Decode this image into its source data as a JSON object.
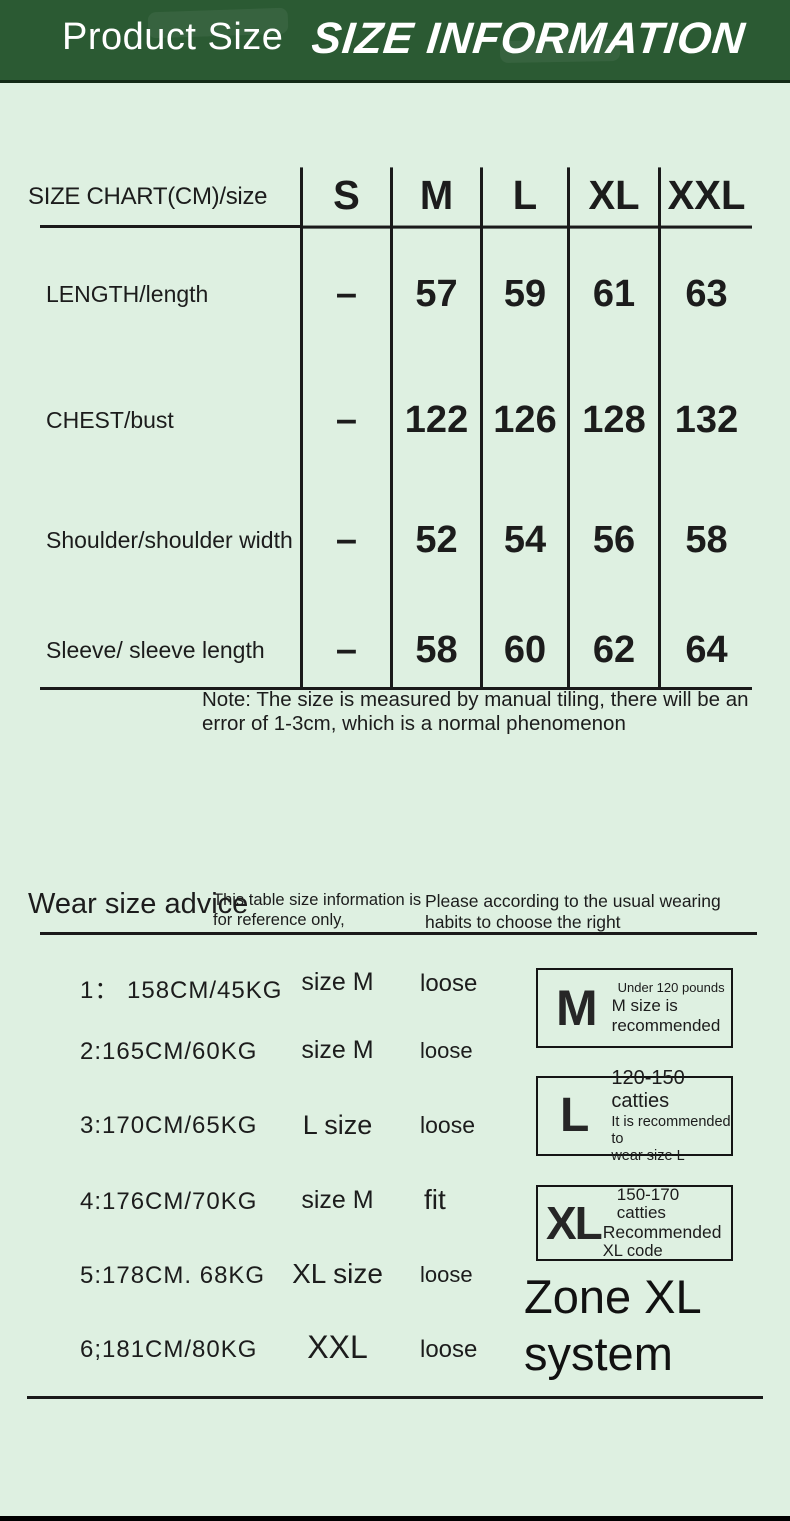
{
  "colors": {
    "header_bg": "#2b5a33",
    "page_bg": "#def0e1",
    "line": "#1a1a1a",
    "text": "#1c1c1c"
  },
  "header": {
    "title": "Product Size",
    "banner": "SIZE INFORMATION"
  },
  "size_chart": {
    "corner_label": "SIZE CHART(CM)/size",
    "columns": [
      "S",
      "M",
      "L",
      "XL",
      "XXL"
    ],
    "rows": [
      {
        "label": "LENGTH/length",
        "values": [
          "–",
          "57",
          "59",
          "61",
          "63"
        ]
      },
      {
        "label": "CHEST/bust",
        "values": [
          "–",
          "122",
          "126",
          "128",
          "132"
        ]
      },
      {
        "label": "Shoulder/shoulder width",
        "values": [
          "–",
          "52",
          "54",
          "56",
          "58"
        ]
      },
      {
        "label": "Sleeve/ sleeve length",
        "values": [
          "–",
          "58",
          "60",
          "62",
          "64"
        ]
      }
    ],
    "note": "Note: The size is measured by manual tiling, there will be an\nerror of 1-3cm, which is a normal phenomenon"
  },
  "advice": {
    "title": "Wear size advice",
    "subtitle1": "This table size information is\nfor reference only,",
    "subtitle2": "Please according to the usual wearing\nhabits to choose the right",
    "rows": [
      {
        "person": "1： 158CM/45KG",
        "size": "size M",
        "fit": "loose"
      },
      {
        "person": "2:165CM/60KG",
        "size": "size M",
        "fit": "loose"
      },
      {
        "person": "3:170CM/65KG",
        "size": "L size",
        "fit": "loose"
      },
      {
        "person": "4:176CM/70KG",
        "size": "size M",
        "fit": "fit"
      },
      {
        "person": "5:178CM. 68KG",
        "size": "XL size",
        "fit": "loose"
      },
      {
        "person": "6;181CM/80KG",
        "size": "XXL",
        "fit": "loose"
      }
    ],
    "badges": [
      {
        "letter": "M",
        "line1": "Under 120 pounds",
        "line2": "M size is",
        "line3": "recommended"
      },
      {
        "letter": "L",
        "line1": "120-150 catties",
        "line2": "It is recommended to",
        "line3": "wear size L"
      },
      {
        "letter": "XL",
        "line1": "150-170 catties",
        "line2": "Recommended",
        "line3": "XL code"
      }
    ],
    "zone_label": "Zone XL\nsystem"
  }
}
